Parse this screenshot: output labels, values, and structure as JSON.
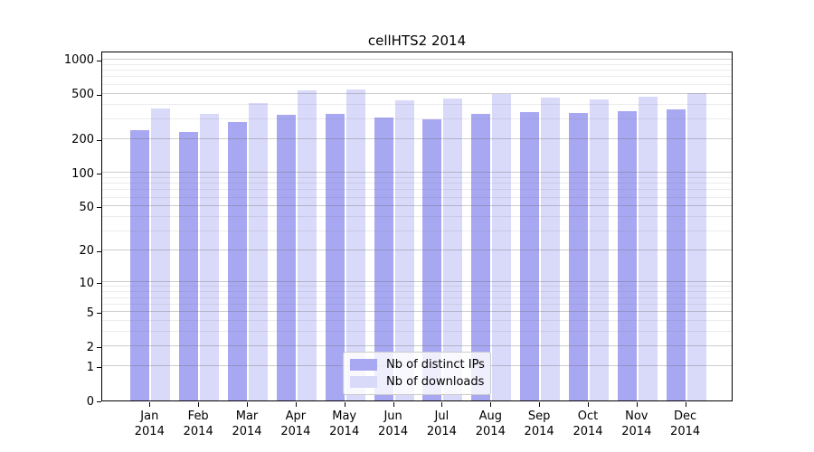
{
  "chart_data": {
    "type": "bar",
    "title": "cellHTS2 2014",
    "yscale": "log1p",
    "ylim": [
      0,
      1200
    ],
    "y_ticks": [
      0,
      1,
      2,
      5,
      10,
      20,
      50,
      100,
      200,
      500,
      1000
    ],
    "y_minor_gridlines": [
      3,
      4,
      6,
      7,
      8,
      9,
      30,
      40,
      60,
      70,
      80,
      90,
      300,
      400,
      600,
      700,
      800,
      900
    ],
    "categories": [
      "Jan",
      "Feb",
      "Mar",
      "Apr",
      "May",
      "Jun",
      "Jul",
      "Aug",
      "Sep",
      "Oct",
      "Nov",
      "Dec"
    ],
    "x_tick_year": "2014",
    "series": [
      {
        "name": "Nb of distinct IPs",
        "color": "#a8a8f2",
        "values": [
          240,
          230,
          280,
          325,
          330,
          310,
          300,
          330,
          345,
          340,
          350,
          365
        ]
      },
      {
        "name": "Nb of downloads",
        "color": "#d9d9f9",
        "values": [
          370,
          335,
          415,
          535,
          545,
          440,
          455,
          495,
          460,
          450,
          475,
          510
        ]
      }
    ],
    "legend_position": "lower center",
    "grid": "on",
    "colors": {
      "axis": "#000000",
      "grid": "#636363",
      "background": "#ffffff"
    }
  }
}
